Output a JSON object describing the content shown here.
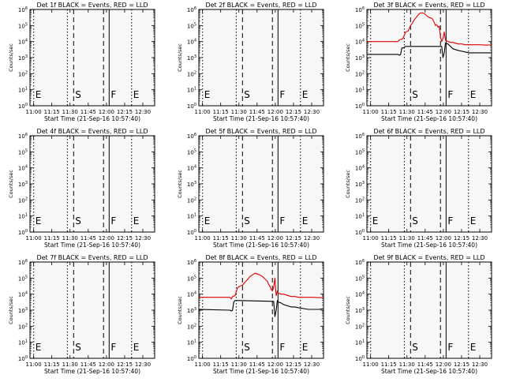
{
  "chart_data": [
    {
      "id": "p1",
      "type": "line",
      "title": "Det 1f BLACK = Events, RED = LLD",
      "xlabel": "Start Time (21-Sep-16 10:57:40)",
      "ylabel": "Counts/sec",
      "x_tick_labels": [
        "11:00",
        "11:15",
        "11:30",
        "11:45",
        "12:00",
        "12:15",
        "12:30"
      ],
      "y_tick_labels": [
        "10^0",
        "10^1",
        "10^2",
        "10^3",
        "10^4",
        "10^5",
        "10^6"
      ],
      "xlim": [
        0,
        100
      ],
      "ylim": [
        0,
        6
      ],
      "markers": [
        {
          "x": 3,
          "style": "dotted",
          "letter": "E"
        },
        {
          "x": 30,
          "style": "dotted",
          "letter": ""
        },
        {
          "x": 35,
          "style": "dashed",
          "letter": "S"
        },
        {
          "x": 59,
          "style": "dashed",
          "letter": ""
        },
        {
          "x": 63.5,
          "style": "solid",
          "letter": "F"
        },
        {
          "x": 81.5,
          "style": "dotted",
          "letter": "E"
        }
      ],
      "series": []
    },
    {
      "id": "p2",
      "type": "line",
      "title": "Det 2f BLACK = Events, RED = LLD",
      "xlabel": "Start Time (21-Sep-16 10:57:40)",
      "ylabel": "Counts/sec",
      "x_tick_labels": [
        "11:00",
        "11:15",
        "11:30",
        "11:45",
        "12:00",
        "12:15",
        "12:30"
      ],
      "y_tick_labels": [
        "10^0",
        "10^1",
        "10^2",
        "10^3",
        "10^4",
        "10^5",
        "10^6"
      ],
      "xlim": [
        0,
        100
      ],
      "ylim": [
        0,
        6
      ],
      "markers": [
        {
          "x": 3,
          "style": "dotted",
          "letter": "E"
        },
        {
          "x": 30,
          "style": "dotted",
          "letter": ""
        },
        {
          "x": 35,
          "style": "dashed",
          "letter": "S"
        },
        {
          "x": 59,
          "style": "dashed",
          "letter": ""
        },
        {
          "x": 63.5,
          "style": "solid",
          "letter": "F"
        },
        {
          "x": 81.5,
          "style": "dotted",
          "letter": "E"
        }
      ],
      "series": []
    },
    {
      "id": "p3",
      "type": "line",
      "title": "Det 3f BLACK = Events, RED = LLD",
      "xlabel": "Start Time (21-Sep-16 10:57:40)",
      "ylabel": "Counts/sec",
      "x_tick_labels": [
        "11:00",
        "11:15",
        "11:30",
        "11:45",
        "12:00",
        "12:15",
        "12:30"
      ],
      "y_tick_labels": [
        "10^0",
        "10^1",
        "10^2",
        "10^3",
        "10^4",
        "10^5",
        "10^6"
      ],
      "xlim": [
        0,
        100
      ],
      "ylim": [
        0,
        6
      ],
      "markers": [
        {
          "x": 3,
          "style": "dotted",
          "letter": ""
        },
        {
          "x": 30,
          "style": "dotted",
          "letter": ""
        },
        {
          "x": 35,
          "style": "dashed",
          "letter": "S"
        },
        {
          "x": 59,
          "style": "dashed",
          "letter": ""
        },
        {
          "x": 63.5,
          "style": "solid",
          "letter": "F"
        },
        {
          "x": 81.5,
          "style": "dotted",
          "letter": "E"
        }
      ],
      "series": [
        {
          "name": "LLD",
          "color": "#e00000",
          "x": [
            0,
            25,
            26,
            28,
            29,
            31,
            33,
            35,
            36,
            38,
            40,
            42,
            44,
            46,
            47,
            48,
            50,
            52,
            53,
            54,
            55,
            56,
            57,
            58,
            59,
            60,
            61,
            62,
            63,
            65,
            67,
            69,
            71,
            73,
            76,
            79,
            82,
            85,
            90,
            95,
            100
          ],
          "y": [
            4.0,
            4.0,
            4.1,
            4.15,
            4.2,
            4.6,
            4.65,
            5.0,
            5.1,
            5.35,
            5.55,
            5.75,
            5.8,
            5.75,
            5.68,
            5.6,
            5.5,
            5.45,
            5.35,
            5.2,
            5.0,
            5.05,
            4.9,
            4.95,
            4.3,
            4.0,
            4.2,
            4.6,
            4.1,
            4.0,
            3.95,
            3.95,
            3.9,
            3.85,
            3.85,
            3.8,
            3.8,
            3.8,
            3.8,
            3.78,
            3.78
          ]
        },
        {
          "name": "Events",
          "color": "#000000",
          "x": [
            0,
            25,
            26,
            27,
            28,
            29,
            31,
            33,
            35,
            60,
            61,
            62,
            63,
            65,
            67,
            69,
            71,
            73,
            76,
            79,
            82,
            85,
            90,
            95,
            100
          ],
          "y": [
            3.2,
            3.2,
            3.15,
            3.2,
            3.6,
            3.6,
            3.7,
            3.7,
            3.7,
            3.7,
            3.0,
            3.3,
            3.9,
            3.85,
            3.7,
            3.55,
            3.5,
            3.45,
            3.4,
            3.35,
            3.3,
            3.3,
            3.3,
            3.3,
            3.3
          ]
        }
      ]
    },
    {
      "id": "p4",
      "type": "line",
      "title": "Det 4f BLACK = Events, RED = LLD",
      "xlabel": "Start Time (21-Sep-16 10:57:40)",
      "ylabel": "Counts/sec",
      "x_tick_labels": [
        "11:00",
        "11:15",
        "11:30",
        "11:45",
        "12:00",
        "12:15",
        "12:30"
      ],
      "y_tick_labels": [
        "10^0",
        "10^1",
        "10^2",
        "10^3",
        "10^4",
        "10^5",
        "10^6"
      ],
      "xlim": [
        0,
        100
      ],
      "ylim": [
        0,
        6
      ],
      "markers": [
        {
          "x": 3,
          "style": "dotted",
          "letter": "E"
        },
        {
          "x": 30,
          "style": "dotted",
          "letter": ""
        },
        {
          "x": 35,
          "style": "dashed",
          "letter": "S"
        },
        {
          "x": 59,
          "style": "dashed",
          "letter": ""
        },
        {
          "x": 63.5,
          "style": "solid",
          "letter": "F"
        },
        {
          "x": 81.5,
          "style": "dotted",
          "letter": "E"
        }
      ],
      "series": []
    },
    {
      "id": "p5",
      "type": "line",
      "title": "Det 5f BLACK = Events, RED = LLD",
      "xlabel": "Start Time (21-Sep-16 10:57:40)",
      "ylabel": "Counts/sec",
      "x_tick_labels": [
        "11:00",
        "11:15",
        "11:30",
        "11:45",
        "12:00",
        "12:15",
        "12:30"
      ],
      "y_tick_labels": [
        "10^0",
        "10^1",
        "10^2",
        "10^3",
        "10^4",
        "10^5",
        "10^6"
      ],
      "xlim": [
        0,
        100
      ],
      "ylim": [
        0,
        6
      ],
      "markers": [
        {
          "x": 3,
          "style": "dotted",
          "letter": "E"
        },
        {
          "x": 30,
          "style": "dotted",
          "letter": ""
        },
        {
          "x": 35,
          "style": "dashed",
          "letter": "S"
        },
        {
          "x": 59,
          "style": "dashed",
          "letter": ""
        },
        {
          "x": 63.5,
          "style": "solid",
          "letter": "F"
        },
        {
          "x": 81.5,
          "style": "dotted",
          "letter": "E"
        }
      ],
      "series": []
    },
    {
      "id": "p6",
      "type": "line",
      "title": "Det 6f BLACK = Events, RED = LLD",
      "xlabel": "Start Time (21-Sep-16 10:57:40)",
      "ylabel": "Counts/sec",
      "x_tick_labels": [
        "11:00",
        "11:15",
        "11:30",
        "11:45",
        "12:00",
        "12:15",
        "12:30"
      ],
      "y_tick_labels": [
        "10^0",
        "10^1",
        "10^2",
        "10^3",
        "10^4",
        "10^5",
        "10^6"
      ],
      "xlim": [
        0,
        100
      ],
      "ylim": [
        0,
        6
      ],
      "markers": [
        {
          "x": 3,
          "style": "dotted",
          "letter": "E"
        },
        {
          "x": 30,
          "style": "dotted",
          "letter": ""
        },
        {
          "x": 35,
          "style": "dashed",
          "letter": "S"
        },
        {
          "x": 59,
          "style": "dashed",
          "letter": ""
        },
        {
          "x": 63.5,
          "style": "solid",
          "letter": "F"
        },
        {
          "x": 81.5,
          "style": "dotted",
          "letter": "E"
        }
      ],
      "series": []
    },
    {
      "id": "p7",
      "type": "line",
      "title": "Det 7f BLACK = Events, RED = LLD",
      "xlabel": "Start Time (21-Sep-16 10:57:40)",
      "ylabel": "Counts/sec",
      "x_tick_labels": [
        "11:00",
        "11:15",
        "11:30",
        "11:45",
        "12:00",
        "12:15",
        "12:30"
      ],
      "y_tick_labels": [
        "10^0",
        "10^1",
        "10^2",
        "10^3",
        "10^4",
        "10^5",
        "10^6"
      ],
      "xlim": [
        0,
        100
      ],
      "ylim": [
        0,
        6
      ],
      "markers": [
        {
          "x": 3,
          "style": "dotted",
          "letter": "E"
        },
        {
          "x": 30,
          "style": "dotted",
          "letter": ""
        },
        {
          "x": 35,
          "style": "dashed",
          "letter": "S"
        },
        {
          "x": 59,
          "style": "dashed",
          "letter": ""
        },
        {
          "x": 63.5,
          "style": "solid",
          "letter": "F"
        },
        {
          "x": 81.5,
          "style": "dotted",
          "letter": "E"
        }
      ],
      "series": []
    },
    {
      "id": "p8",
      "type": "line",
      "title": "Det 8f BLACK = Events, RED = LLD",
      "xlabel": "Start Time (21-Sep-16 10:57:40)",
      "ylabel": "Counts/sec",
      "x_tick_labels": [
        "11:00",
        "11:15",
        "11:30",
        "11:45",
        "12:00",
        "12:15",
        "12:30"
      ],
      "y_tick_labels": [
        "10^0",
        "10^1",
        "10^2",
        "10^3",
        "10^4",
        "10^5",
        "10^6"
      ],
      "xlim": [
        0,
        100
      ],
      "ylim": [
        0,
        6
      ],
      "markers": [
        {
          "x": 3,
          "style": "dotted",
          "letter": ""
        },
        {
          "x": 30,
          "style": "dotted",
          "letter": ""
        },
        {
          "x": 35,
          "style": "dashed",
          "letter": "S"
        },
        {
          "x": 59,
          "style": "dashed",
          "letter": ""
        },
        {
          "x": 63.5,
          "style": "solid",
          "letter": "F"
        },
        {
          "x": 81.5,
          "style": "dotted",
          "letter": "E"
        }
      ],
      "series": [
        {
          "name": "LLD",
          "color": "#e00000",
          "x": [
            0,
            25,
            26,
            27,
            29,
            31,
            33,
            35,
            37,
            39,
            41,
            43,
            45,
            47,
            49,
            51,
            53,
            55,
            56,
            57,
            58,
            59,
            60,
            61,
            62,
            63,
            64,
            66,
            68,
            70,
            72,
            74,
            77,
            80,
            84,
            88,
            92,
            96,
            100
          ],
          "y": [
            3.8,
            3.8,
            3.7,
            3.85,
            3.9,
            4.4,
            4.5,
            4.55,
            4.75,
            4.9,
            5.1,
            5.2,
            5.3,
            5.25,
            5.2,
            5.1,
            4.95,
            4.8,
            4.6,
            4.5,
            4.3,
            4.2,
            4.4,
            5.0,
            3.9,
            4.2,
            4.05,
            4.0,
            4.0,
            3.95,
            3.9,
            3.85,
            3.85,
            3.8,
            3.8,
            3.8,
            3.8,
            3.78,
            3.78
          ]
        },
        {
          "name": "Events",
          "color": "#000000",
          "x": [
            0,
            25,
            26,
            27,
            28,
            29,
            31,
            33,
            60,
            61,
            62,
            63,
            64,
            66,
            68,
            70,
            72,
            74,
            77,
            80,
            84,
            88,
            92,
            96,
            100
          ],
          "y": [
            3.05,
            3.0,
            2.95,
            3.0,
            3.5,
            3.6,
            3.6,
            3.6,
            3.55,
            2.6,
            3.0,
            3.6,
            3.5,
            3.45,
            3.35,
            3.3,
            3.25,
            3.2,
            3.2,
            3.15,
            3.1,
            3.05,
            3.05,
            3.05,
            3.1
          ]
        }
      ]
    },
    {
      "id": "p9",
      "type": "line",
      "title": "Det 9f BLACK = Events, RED = LLD",
      "xlabel": "Start Time (21-Sep-16 10:57:40)",
      "ylabel": "Counts/sec",
      "x_tick_labels": [
        "11:00",
        "11:15",
        "11:30",
        "11:45",
        "12:00",
        "12:15",
        "12:30"
      ],
      "y_tick_labels": [
        "10^0",
        "10^1",
        "10^2",
        "10^3",
        "10^4",
        "10^5",
        "10^6"
      ],
      "xlim": [
        0,
        100
      ],
      "ylim": [
        0,
        6
      ],
      "markers": [
        {
          "x": 3,
          "style": "dotted",
          "letter": ""
        },
        {
          "x": 30,
          "style": "dotted",
          "letter": ""
        },
        {
          "x": 35,
          "style": "dashed",
          "letter": "S"
        },
        {
          "x": 59,
          "style": "dashed",
          "letter": ""
        },
        {
          "x": 63.5,
          "style": "solid",
          "letter": "F"
        },
        {
          "x": 81.5,
          "style": "dotted",
          "letter": "E"
        }
      ],
      "series": []
    }
  ]
}
